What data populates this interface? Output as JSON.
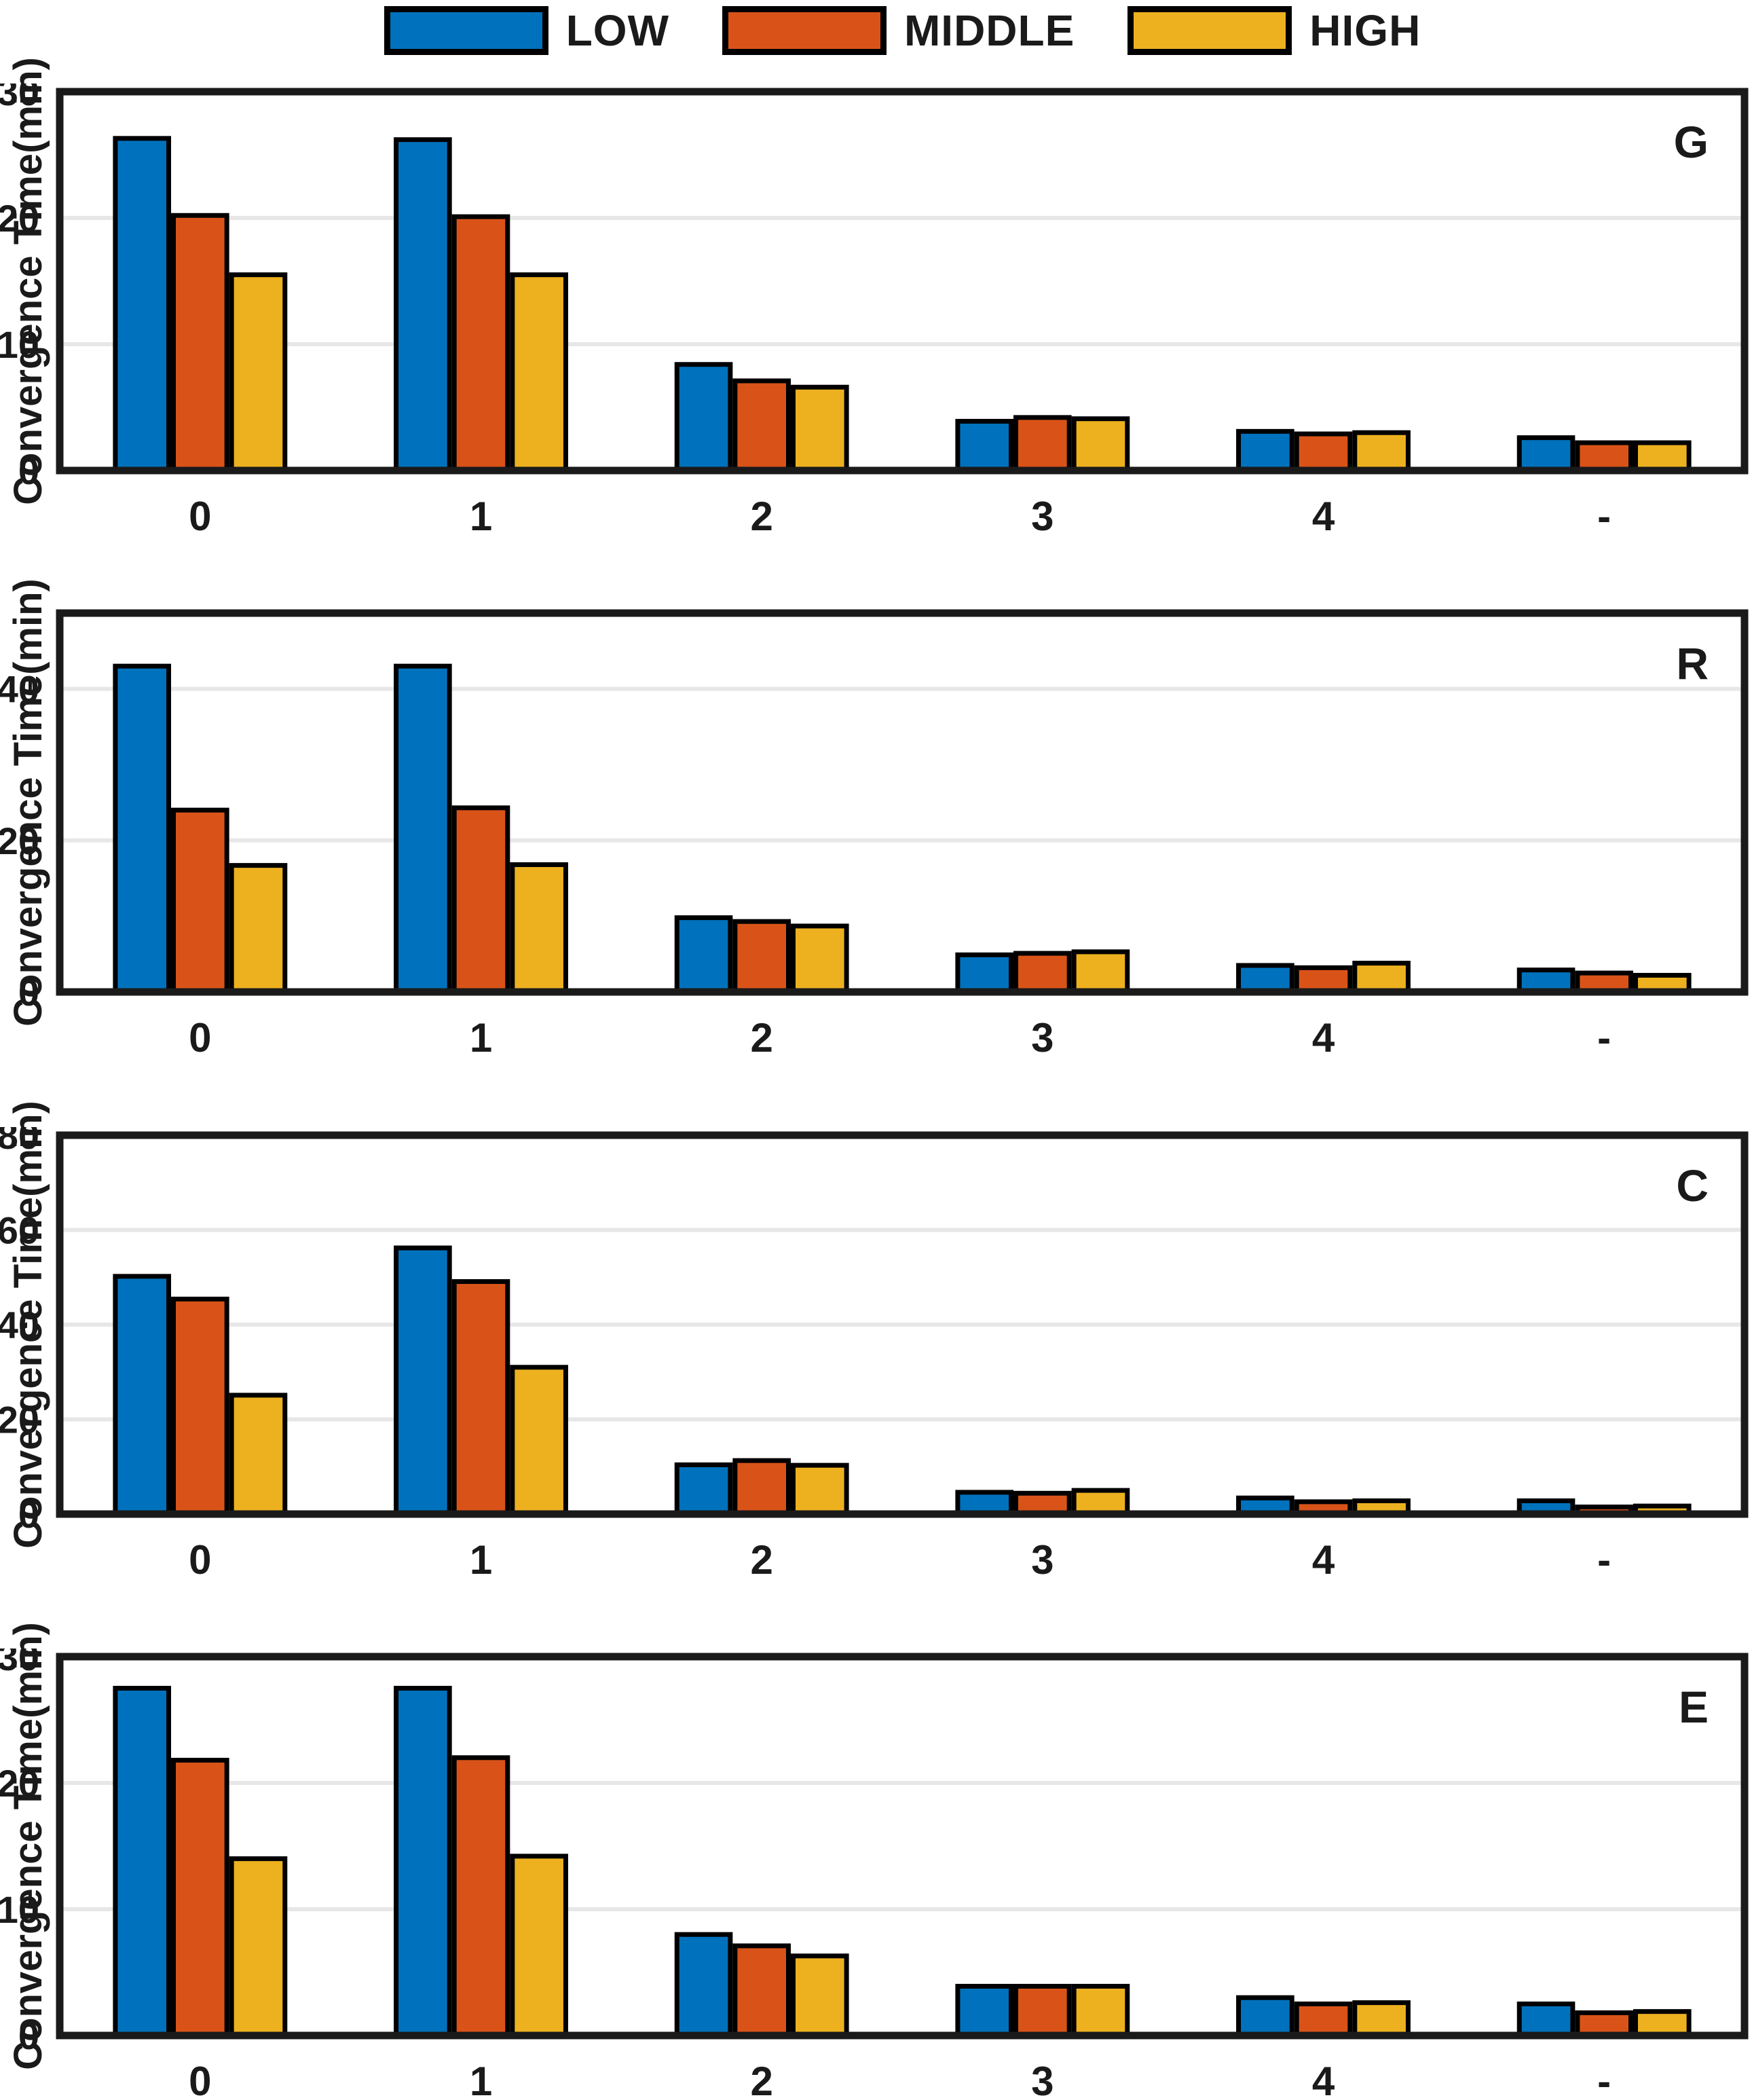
{
  "styles": {
    "background": "#ffffff",
    "axis_color": "#1a1a1a",
    "grid_color": "#e7e7e7",
    "bar_edge_color": "#000000",
    "series_colors": [
      "#0072BD",
      "#D95319",
      "#EDB120"
    ]
  },
  "legend": {
    "position": "top-center",
    "entries": [
      "LOW",
      "MIDDLE",
      "HIGH"
    ]
  },
  "chart_data": [
    {
      "type": "bar",
      "panel_label": "G",
      "ylabel": "Convergence Time(min)",
      "categories": [
        "0",
        "1",
        "2",
        "3",
        "4",
        "-"
      ],
      "ylim": [
        0,
        30
      ],
      "yticks": [
        0,
        10,
        20,
        30
      ],
      "grid": "horizontal",
      "legend_position": "above-figure",
      "series": [
        {
          "name": "LOW",
          "color": "#0072BD",
          "values": [
            26.3,
            26.2,
            8.4,
            3.9,
            3.1,
            2.6
          ]
        },
        {
          "name": "MIDDLE",
          "color": "#D95319",
          "values": [
            20.2,
            20.1,
            7.1,
            4.2,
            2.9,
            2.2
          ]
        },
        {
          "name": "HIGH",
          "color": "#EDB120",
          "values": [
            15.5,
            15.5,
            6.6,
            4.1,
            3.0,
            2.2
          ]
        }
      ]
    },
    {
      "type": "bar",
      "panel_label": "R",
      "ylabel": "Convergence Time(min)",
      "categories": [
        "0",
        "1",
        "2",
        "3",
        "4",
        "-"
      ],
      "ylim": [
        0,
        50
      ],
      "yticks": [
        0,
        20,
        40
      ],
      "grid": "horizontal",
      "series": [
        {
          "name": "LOW",
          "color": "#0072BD",
          "values": [
            43.0,
            43.0,
            9.8,
            4.9,
            3.5,
            2.9
          ]
        },
        {
          "name": "MIDDLE",
          "color": "#D95319",
          "values": [
            24.0,
            24.3,
            9.3,
            5.1,
            3.2,
            2.5
          ]
        },
        {
          "name": "HIGH",
          "color": "#EDB120",
          "values": [
            16.7,
            16.8,
            8.7,
            5.3,
            3.8,
            2.2
          ]
        }
      ]
    },
    {
      "type": "bar",
      "panel_label": "C",
      "ylabel": "Convergence Time(min)",
      "categories": [
        "0",
        "1",
        "2",
        "3",
        "4",
        "-"
      ],
      "ylim": [
        0,
        80
      ],
      "yticks": [
        0,
        20,
        40,
        60,
        80
      ],
      "grid": "horizontal",
      "series": [
        {
          "name": "LOW",
          "color": "#0072BD",
          "values": [
            50.2,
            56.2,
            10.4,
            4.6,
            3.4,
            2.8
          ]
        },
        {
          "name": "MIDDLE",
          "color": "#D95319",
          "values": [
            45.4,
            49.1,
            11.3,
            4.4,
            2.6,
            1.5
          ]
        },
        {
          "name": "HIGH",
          "color": "#EDB120",
          "values": [
            25.1,
            31.0,
            10.3,
            5.0,
            2.8,
            1.7
          ]
        }
      ]
    },
    {
      "type": "bar",
      "panel_label": "E",
      "ylabel": "Convergence Time(min)",
      "categories": [
        "0",
        "1",
        "2",
        "3",
        "4",
        "-"
      ],
      "ylim": [
        0,
        30
      ],
      "yticks": [
        0,
        10,
        20,
        30
      ],
      "grid": "horizontal",
      "series": [
        {
          "name": "LOW",
          "color": "#0072BD",
          "values": [
            27.5,
            27.5,
            8.0,
            3.9,
            3.0,
            2.5
          ]
        },
        {
          "name": "MIDDLE",
          "color": "#D95319",
          "values": [
            21.8,
            22.0,
            7.1,
            3.9,
            2.5,
            1.8
          ]
        },
        {
          "name": "HIGH",
          "color": "#EDB120",
          "values": [
            14.0,
            14.2,
            6.3,
            3.9,
            2.6,
            1.9
          ]
        }
      ]
    }
  ]
}
